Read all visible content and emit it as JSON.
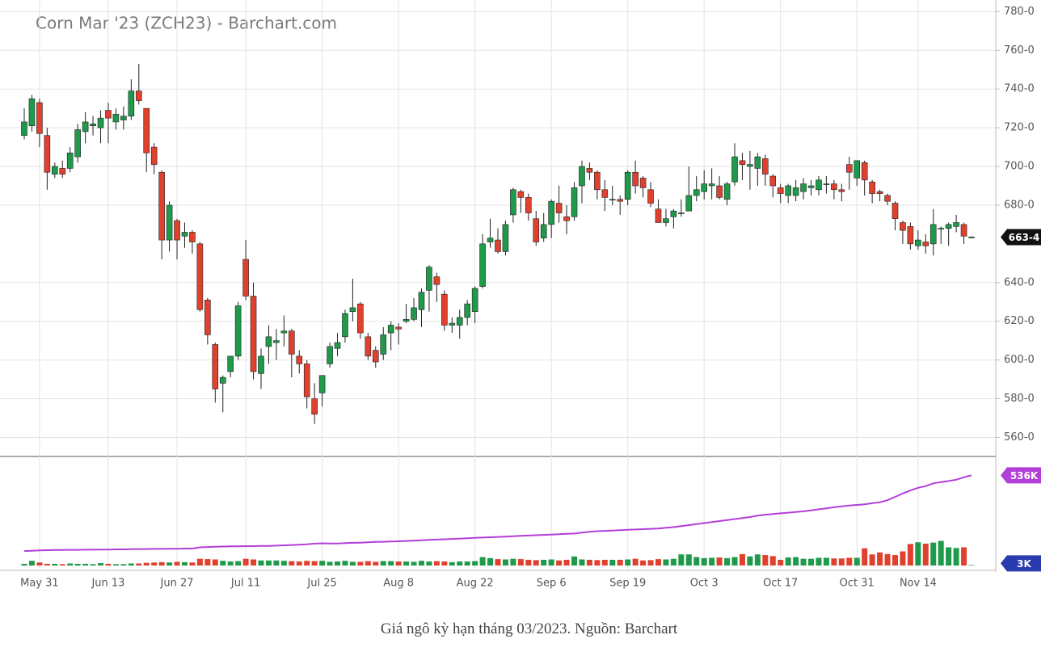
{
  "chart_data": {
    "type": "candlestick",
    "title": "Corn Mar '23 (ZCH23) - Barchart.com",
    "caption": "Giá ngô kỳ hạn tháng 03/2023. Nguồn: Barchart",
    "categories": [
      null,
      null,
      "May 31",
      null,
      null,
      null,
      null,
      null,
      null,
      null,
      null,
      "Jun 13",
      null,
      null,
      null,
      null,
      null,
      null,
      null,
      null,
      "Jun 27",
      null,
      null,
      null,
      null,
      null,
      null,
      null,
      null,
      "Jul 11",
      null,
      null,
      null,
      null,
      null,
      null,
      null,
      null,
      null,
      "Jul 25",
      null,
      null,
      null,
      null,
      null,
      null,
      null,
      null,
      null,
      "Aug 8",
      null,
      null,
      null,
      null,
      null,
      null,
      null,
      null,
      null,
      "Aug 22",
      null,
      null,
      null,
      null,
      null,
      null,
      null,
      null,
      null,
      "Sep 6",
      null,
      null,
      null,
      null,
      null,
      null,
      null,
      null,
      null,
      "Sep 19",
      null,
      null,
      null,
      null,
      null,
      null,
      null,
      null,
      null,
      "Oct 3",
      null,
      null,
      null,
      null,
      null,
      null,
      null,
      null,
      null,
      "Oct 17",
      null,
      null,
      null,
      null,
      null,
      null,
      null,
      null,
      null,
      "Oct 31",
      null,
      null,
      null,
      null,
      null,
      null,
      null,
      "Nov 14",
      null,
      null,
      null,
      null,
      null,
      null,
      null
    ],
    "open": [
      716,
      721,
      733,
      716,
      696,
      699,
      699,
      705,
      718,
      721,
      720,
      729,
      723,
      724,
      726,
      739,
      730,
      710,
      697,
      662,
      672,
      664,
      666,
      660,
      631,
      608,
      588,
      594,
      602,
      652,
      633,
      593,
      607,
      609,
      614,
      615,
      602,
      598,
      580,
      583,
      598,
      606,
      612,
      625,
      629,
      612,
      605,
      603,
      614,
      617,
      620,
      621,
      626,
      636,
      643,
      634,
      618,
      618,
      622,
      625,
      638,
      661,
      662,
      656,
      675,
      687,
      684,
      673,
      663,
      670,
      681,
      674,
      674,
      690,
      699,
      697,
      688,
      683,
      683,
      683,
      697,
      694,
      688,
      678,
      671,
      674,
      676,
      677,
      685,
      687,
      690,
      690,
      683,
      692,
      703,
      700,
      699,
      704,
      695,
      689,
      685,
      685,
      687,
      689,
      688,
      691,
      691,
      688,
      701,
      694,
      702,
      692,
      687,
      685,
      681,
      671,
      669,
      659,
      661,
      660,
      668,
      668,
      669,
      670,
      663.5
    ],
    "high": [
      730,
      737,
      735,
      720,
      702,
      703,
      710,
      722,
      728,
      726,
      729,
      733,
      730,
      731,
      745,
      753,
      730,
      712,
      698,
      682,
      673,
      671,
      667,
      661,
      632,
      609,
      592,
      602,
      630,
      662,
      640,
      606,
      618,
      616,
      623,
      616,
      605,
      600,
      588,
      592,
      609,
      614,
      626,
      642,
      630,
      614,
      607,
      617,
      620,
      619,
      629,
      632,
      637,
      649,
      645,
      636,
      622,
      626,
      631,
      638,
      665,
      673,
      668,
      672,
      689,
      688,
      686,
      677,
      676,
      683,
      690,
      680,
      692,
      703,
      702,
      698,
      693,
      690,
      685,
      698,
      703,
      695,
      692,
      683,
      678,
      678,
      683,
      700,
      695,
      698,
      699,
      695,
      692,
      712,
      707,
      708,
      707,
      706,
      696,
      691,
      691,
      693,
      694,
      693,
      695,
      695,
      693,
      691,
      705,
      703,
      703,
      693,
      688,
      686,
      682,
      672,
      671,
      667,
      665,
      678,
      669,
      671,
      675,
      671,
      664
    ],
    "low": [
      714,
      718,
      710,
      688,
      694,
      694,
      697,
      702,
      712,
      716,
      712,
      712,
      719,
      719,
      724,
      732,
      697,
      696,
      652,
      656,
      652,
      658,
      655,
      625,
      608,
      578,
      573,
      591,
      600,
      631,
      590,
      585,
      598,
      600,
      607,
      591,
      593,
      575,
      567,
      576,
      596,
      602,
      609,
      620,
      611,
      600,
      596,
      600,
      605,
      608,
      619,
      620,
      617,
      625,
      630,
      615,
      614,
      611,
      618,
      619,
      637,
      658,
      655,
      654,
      671,
      676,
      672,
      659,
      661,
      663,
      671,
      665,
      672,
      681,
      693,
      683,
      677,
      680,
      675,
      680,
      686,
      684,
      679,
      671,
      669,
      668,
      674,
      677,
      682,
      683,
      683,
      683,
      680,
      690,
      693,
      688,
      690,
      690,
      684,
      681,
      681,
      682,
      683,
      685,
      685,
      686,
      683,
      682,
      688,
      690,
      685,
      681,
      682,
      680,
      667,
      660,
      657,
      657,
      655,
      654,
      660,
      659,
      666,
      660,
      663
    ],
    "close": [
      723,
      735,
      717,
      697,
      700,
      696,
      707,
      719,
      723,
      722,
      725,
      725,
      727,
      726,
      739,
      734,
      707,
      701,
      662,
      680,
      662,
      666,
      661,
      626,
      613,
      585,
      591,
      602,
      628,
      633,
      594,
      602,
      612,
      610,
      615,
      603,
      598,
      581,
      572,
      592,
      607,
      609,
      624,
      627,
      614,
      602,
      599,
      613,
      618,
      616,
      621,
      627,
      635,
      648,
      639,
      618,
      619,
      622,
      629,
      637,
      660,
      663,
      656,
      670,
      688,
      684,
      676,
      661,
      670,
      682,
      676,
      672,
      689,
      700,
      697,
      688,
      684,
      683,
      682,
      697,
      690,
      689,
      681,
      671,
      673,
      677,
      676,
      685,
      688,
      691,
      691,
      684,
      691,
      705,
      701,
      701,
      705,
      696,
      690,
      686,
      690,
      689,
      691,
      690,
      693,
      691,
      688,
      687,
      697,
      703,
      693,
      686,
      686,
      682,
      673,
      667,
      660,
      662,
      659,
      670,
      668,
      670,
      671,
      664,
      663.5
    ],
    "last_label": "663-4",
    "up_color": "#1f9a4a",
    "down_color": "#e0412e",
    "ylim": [
      551,
      786
    ],
    "yticks": [
      {
        "value": 560,
        "label": "560-0"
      },
      {
        "value": 580,
        "label": "580-0"
      },
      {
        "value": 600,
        "label": "600-0"
      },
      {
        "value": 620,
        "label": "620-0"
      },
      {
        "value": 640,
        "label": "640-0"
      },
      {
        "value": 680,
        "label": "680-0"
      },
      {
        "value": 700,
        "label": "700-0"
      },
      {
        "value": 720,
        "label": "720-0"
      },
      {
        "value": 740,
        "label": "740-0"
      },
      {
        "value": 760,
        "label": "760-0"
      },
      {
        "value": 780,
        "label": "780-0"
      }
    ],
    "grid": true,
    "volume": {
      "values": [
        10,
        28,
        18,
        10,
        10,
        8,
        12,
        10,
        10,
        8,
        14,
        10,
        8,
        8,
        12,
        12,
        16,
        18,
        20,
        18,
        22,
        20,
        18,
        40,
        38,
        36,
        28,
        24,
        26,
        40,
        36,
        30,
        30,
        30,
        28,
        26,
        24,
        28,
        26,
        28,
        22,
        24,
        28,
        22,
        22,
        26,
        22,
        26,
        26,
        24,
        24,
        22,
        28,
        24,
        26,
        24,
        20,
        24,
        24,
        26,
        50,
        44,
        38,
        36,
        40,
        38,
        34,
        32,
        34,
        36,
        30,
        34,
        54,
        36,
        34,
        32,
        34,
        34,
        34,
        36,
        40,
        30,
        32,
        38,
        36,
        40,
        66,
        66,
        50,
        44,
        46,
        48,
        44,
        50,
        68,
        54,
        66,
        62,
        56,
        34,
        48,
        50,
        40,
        40,
        46,
        46,
        42,
        42,
        46,
        46,
        102,
        66,
        78,
        68,
        62,
        84,
        128,
        138,
        130,
        136,
        146,
        108,
        104,
        108,
        3
      ],
      "last_label": "3K",
      "badge_color": "#2a3bb0"
    },
    "open_interest": {
      "values": [
        86,
        88,
        90,
        91,
        92,
        92,
        93,
        93,
        94,
        94,
        95,
        95,
        96,
        96,
        97,
        98,
        98,
        99,
        99,
        100,
        100,
        101,
        101,
        108,
        110,
        112,
        113,
        114,
        114,
        115,
        115,
        116,
        116,
        118,
        120,
        122,
        124,
        126,
        130,
        132,
        131,
        131,
        133,
        135,
        136,
        138,
        140,
        141,
        143,
        144,
        146,
        148,
        150,
        152,
        154,
        156,
        158,
        160,
        162,
        164,
        166,
        168,
        170,
        172,
        174,
        176,
        178,
        180,
        182,
        184,
        186,
        188,
        190,
        196,
        200,
        204,
        206,
        208,
        210,
        212,
        214,
        216,
        218,
        220,
        224,
        228,
        234,
        240,
        246,
        252,
        258,
        264,
        270,
        276,
        282,
        288,
        296,
        302,
        306,
        310,
        314,
        318,
        322,
        328,
        334,
        340,
        346,
        352,
        356,
        360,
        364,
        370,
        376,
        388,
        408,
        428,
        446,
        462,
        472,
        488,
        496,
        502,
        510,
        524,
        536
      ],
      "last_label": "536K",
      "color": "#b23fd8"
    },
    "volume_lim": [
      0,
      600
    ]
  }
}
